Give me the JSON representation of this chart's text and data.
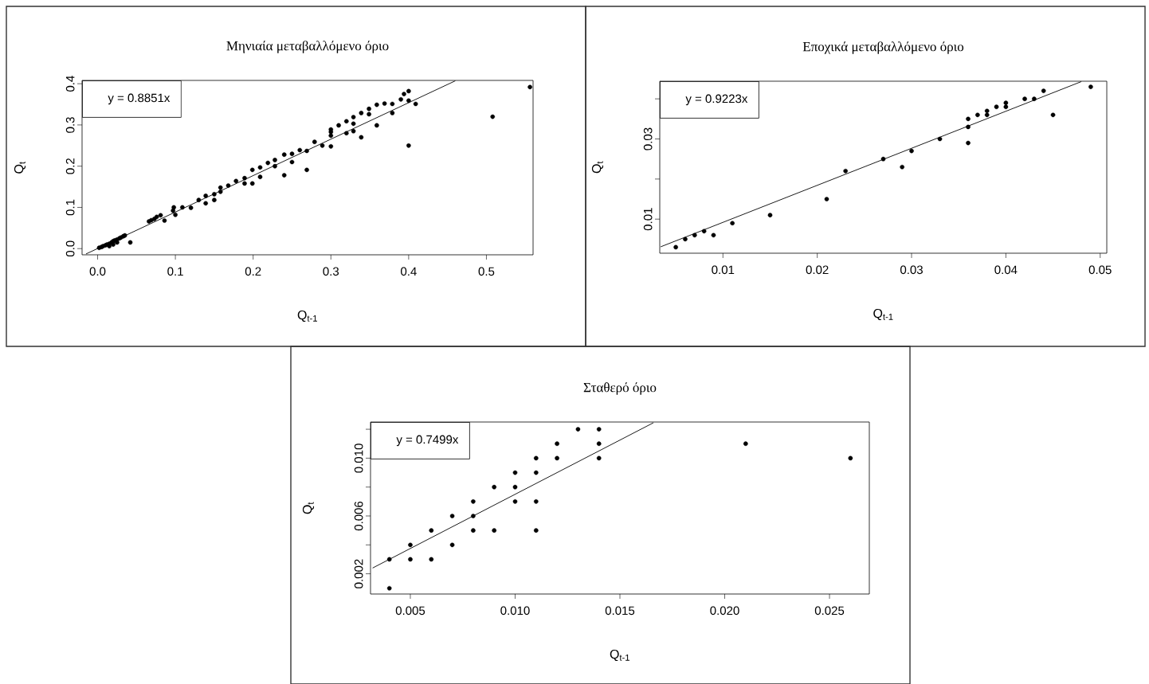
{
  "chart_data": [
    {
      "type": "scatter",
      "title": "Μηνιαία μεταβαλλόμενο όριο",
      "xlabel": "Q$_{t-1}$",
      "ylabel": "Q$_{t}$",
      "xlim": [
        -0.02,
        0.56
      ],
      "ylim": [
        -0.015,
        0.408
      ],
      "xticks": [
        {
          "value": 0,
          "label": "0.0"
        },
        0.1,
        0.2,
        0.3,
        0.4,
        0.5
      ],
      "yticks": [
        {
          "value": 0,
          "label": "0.0"
        },
        0.1,
        0.2,
        0.3,
        0.4
      ],
      "annotations": [
        "y = 0.8851x"
      ],
      "series": [
        {
          "color": "#000000",
          "marker": "circle",
          "x": [
            0.002,
            0.005,
            0.007,
            0.01,
            0.012,
            0.015,
            0.018,
            0.02,
            0.022,
            0.025,
            0.028,
            0.03,
            0.033,
            0.035,
            0.015,
            0.02,
            0.025,
            0.042,
            0.066,
            0.069,
            0.073,
            0.081,
            0.086,
            0.076,
            0.097,
            0.098,
            0.1,
            0.109,
            0.12,
            0.13,
            0.139,
            0.139,
            0.15,
            0.15,
            0.158,
            0.158,
            0.168,
            0.178,
            0.189,
            0.189,
            0.199,
            0.199,
            0.209,
            0.209,
            0.219,
            0.228,
            0.228,
            0.24,
            0.24,
            0.25,
            0.25,
            0.26,
            0.269,
            0.269,
            0.279,
            0.289,
            0.3,
            0.3,
            0.3,
            0.3,
            0.31,
            0.32,
            0.32,
            0.329,
            0.329,
            0.329,
            0.339,
            0.339,
            0.349,
            0.349,
            0.359,
            0.359,
            0.369,
            0.379,
            0.379,
            0.39,
            0.394,
            0.4,
            0.4,
            0.4,
            0.409,
            0.508,
            0.556
          ],
          "values": [
            0.002,
            0.004,
            0.006,
            0.008,
            0.01,
            0.012,
            0.015,
            0.018,
            0.02,
            0.022,
            0.025,
            0.027,
            0.03,
            0.032,
            0.006,
            0.01,
            0.015,
            0.015,
            0.066,
            0.069,
            0.072,
            0.081,
            0.068,
            0.077,
            0.092,
            0.1,
            0.082,
            0.1,
            0.099,
            0.118,
            0.128,
            0.11,
            0.132,
            0.118,
            0.148,
            0.138,
            0.153,
            0.164,
            0.171,
            0.158,
            0.191,
            0.158,
            0.197,
            0.174,
            0.208,
            0.215,
            0.2,
            0.228,
            0.178,
            0.23,
            0.21,
            0.239,
            0.237,
            0.191,
            0.259,
            0.25,
            0.289,
            0.283,
            0.274,
            0.248,
            0.299,
            0.309,
            0.28,
            0.319,
            0.303,
            0.285,
            0.329,
            0.27,
            0.339,
            0.326,
            0.349,
            0.299,
            0.352,
            0.351,
            0.329,
            0.362,
            0.375,
            0.382,
            0.359,
            0.25,
            0.351,
            0.32,
            0.392
          ]
        },
        {
          "type": "line",
          "color": "#000000",
          "x": [
            -0.015,
            0.46
          ],
          "values": [
            -0.013,
            0.407
          ]
        }
      ]
    },
    {
      "type": "scatter",
      "title": "Εποχικά μεταβαλλόμενο όριο",
      "xlabel": "Q$_{t-1}$",
      "ylabel": "Q$_{t}$",
      "xlim": [
        0.0033,
        0.0507
      ],
      "ylim": [
        0.0015,
        0.0444
      ],
      "xticks": [
        0.01,
        0.02,
        0.03,
        0.04,
        0.05
      ],
      "yticks": [
        0.01,
        {
          "value": 0.02,
          "label": null
        },
        0.03,
        {
          "value": 0.04,
          "label": null
        }
      ],
      "annotations": [
        "y = 0.9223x"
      ],
      "series": [
        {
          "color": "#000000",
          "marker": "circle",
          "x": [
            0.005,
            0.006,
            0.007,
            0.008,
            0.009,
            0.011,
            0.015,
            0.021,
            0.023,
            0.027,
            0.029,
            0.03,
            0.033,
            0.036,
            0.036,
            0.036,
            0.037,
            0.038,
            0.038,
            0.039,
            0.04,
            0.04,
            0.042,
            0.043,
            0.044,
            0.045,
            0.049
          ],
          "values": [
            0.003,
            0.005,
            0.006,
            0.007,
            0.006,
            0.009,
            0.011,
            0.015,
            0.022,
            0.025,
            0.023,
            0.027,
            0.03,
            0.035,
            0.033,
            0.029,
            0.036,
            0.037,
            0.036,
            0.038,
            0.039,
            0.038,
            0.04,
            0.04,
            0.042,
            0.036,
            0.043
          ]
        },
        {
          "type": "line",
          "color": "#000000",
          "x": [
            0.0034,
            0.048
          ],
          "values": [
            0.0031,
            0.0443
          ]
        }
      ]
    },
    {
      "type": "scatter",
      "title": "Σταθερό όριο",
      "xlabel": "Q$_{t-1}$",
      "ylabel": "Q$_{t}$",
      "xlim": [
        0.0031,
        0.0269
      ],
      "ylim": [
        0.0006,
        0.0125
      ],
      "xticks": [
        0.005,
        {
          "value": 0.01,
          "label": "0.010"
        },
        0.015,
        {
          "value": 0.02,
          "label": "0.020"
        },
        0.025
      ],
      "yticks": [
        0.002,
        {
          "value": 0.004,
          "label": null
        },
        0.006,
        {
          "value": 0.008,
          "label": null
        },
        {
          "value": 0.01,
          "label": "0.010"
        },
        {
          "value": 0.012,
          "label": null
        }
      ],
      "annotations": [
        "y = 0.7499x"
      ],
      "series": [
        {
          "color": "#000000",
          "marker": "circle",
          "x": [
            0.004,
            0.004,
            0.005,
            0.005,
            0.006,
            0.006,
            0.007,
            0.007,
            0.008,
            0.008,
            0.008,
            0.009,
            0.009,
            0.01,
            0.01,
            0.01,
            0.011,
            0.011,
            0.011,
            0.011,
            0.012,
            0.012,
            0.013,
            0.014,
            0.014,
            0.014,
            0.021,
            0.026
          ],
          "values": [
            0.001,
            0.003,
            0.003,
            0.004,
            0.003,
            0.005,
            0.004,
            0.006,
            0.005,
            0.006,
            0.007,
            0.005,
            0.008,
            0.007,
            0.008,
            0.009,
            0.005,
            0.007,
            0.009,
            0.01,
            0.01,
            0.011,
            0.012,
            0.01,
            0.011,
            0.012,
            0.011,
            0.01
          ]
        },
        {
          "type": "line",
          "color": "#000000",
          "x": [
            0.0032,
            0.0166
          ],
          "values": [
            0.0024,
            0.01245
          ]
        }
      ]
    }
  ]
}
